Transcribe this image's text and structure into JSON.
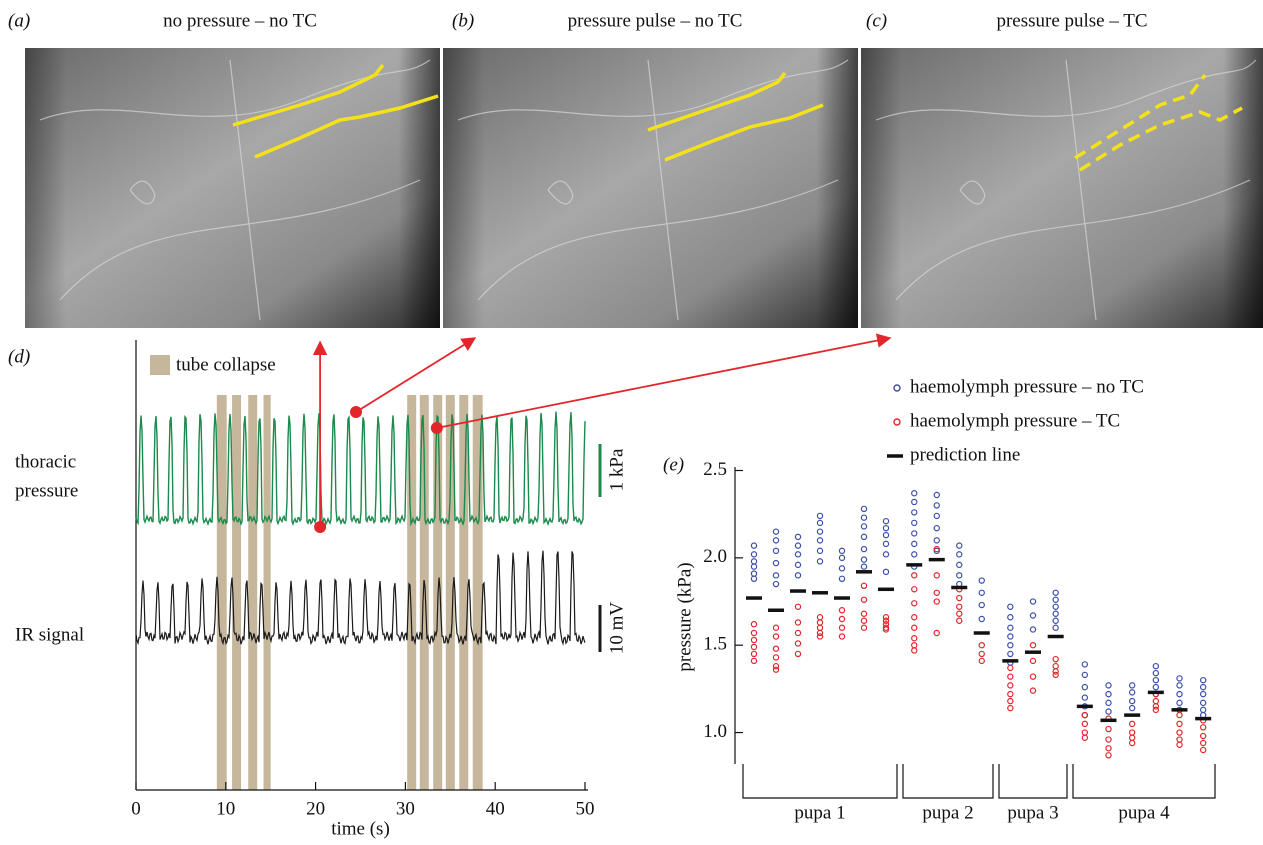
{
  "panels": [
    {
      "label": "(a)",
      "title": "no pressure – no TC"
    },
    {
      "label": "(b)",
      "title": "pressure pulse – no TC"
    },
    {
      "label": "(c)",
      "title": "pressure pulse – TC"
    }
  ],
  "chart_data": [
    {
      "type": "trace",
      "label": "(d)",
      "xlabel": "time (s)",
      "xlim": [
        0,
        50
      ],
      "xticks": [
        0,
        10,
        20,
        30,
        40,
        50
      ],
      "legend": "tube collapse",
      "interval_color": "#c5b69c",
      "intervals": [
        [
          9.0,
          10.1
        ],
        [
          10.7,
          11.7
        ],
        [
          12.5,
          13.5
        ],
        [
          14.2,
          15.0
        ],
        [
          30.2,
          31.2
        ],
        [
          31.6,
          32.6
        ],
        [
          33.1,
          34.1
        ],
        [
          34.5,
          35.5
        ],
        [
          36.0,
          37.0
        ],
        [
          37.5,
          38.6
        ]
      ],
      "traces": [
        {
          "name": [
            "thoracic",
            "pressure"
          ],
          "color": "#1b8a4c",
          "scale_label": "1 kPa"
        },
        {
          "name": "IR signal",
          "color": "#1a1a1a",
          "scale_label": "10 mV"
        }
      ],
      "markers": [
        20.5,
        24.5,
        33.5
      ],
      "marker_color": "#e3262b"
    },
    {
      "type": "strip",
      "label": "(e)",
      "ylabel": "pressure (kPa)",
      "ylim": [
        0.82,
        2.52
      ],
      "yticks": [
        {
          "value": 1.0,
          "label": "1.0"
        },
        1.5,
        {
          "value": 2.0,
          "label": "2.0"
        },
        2.5
      ],
      "legend": {
        "no_tc": {
          "name": "haemolymph pressure – no TC",
          "color": "#3b4fa8"
        },
        "tc": {
          "name": "haemolymph pressure – TC",
          "color": "#e0262a"
        },
        "prediction": {
          "name": "prediction line",
          "color": "#111111"
        }
      },
      "groups": [
        {
          "label": "pupa 1",
          "columns": [
            {
              "no_tc": [
                2.07,
                2.02,
                1.98,
                1.95,
                1.91,
                1.88
              ],
              "tc": [
                1.62,
                1.57,
                1.53,
                1.49,
                1.45,
                1.41
              ],
              "prediction": 1.77
            },
            {
              "no_tc": [
                2.15,
                2.1,
                2.04,
                1.97,
                1.9,
                1.85
              ],
              "tc": [
                1.6,
                1.55,
                1.48,
                1.43,
                1.38,
                1.36
              ],
              "prediction": 1.7
            },
            {
              "no_tc": [
                2.12,
                2.07,
                2.02,
                1.96,
                1.9
              ],
              "tc": [
                1.72,
                1.63,
                1.57,
                1.51,
                1.45
              ],
              "prediction": 1.81
            },
            {
              "no_tc": [
                2.24,
                2.2,
                2.15,
                2.1,
                2.04,
                1.98
              ],
              "tc": [
                1.66,
                1.63,
                1.6,
                1.57,
                1.55
              ],
              "prediction": 1.8
            },
            {
              "no_tc": [
                2.04,
                2.0,
                1.94,
                1.88
              ],
              "tc": [
                1.7,
                1.65,
                1.6,
                1.55
              ],
              "prediction": 1.77
            },
            {
              "no_tc": [
                2.28,
                2.23,
                2.18,
                2.12,
                2.05,
                1.99,
                1.95
              ],
              "tc": [
                1.84,
                1.76,
                1.68,
                1.64,
                1.6
              ],
              "prediction": 1.92
            },
            {
              "no_tc": [
                2.21,
                2.17,
                2.13,
                2.08,
                2.02,
                1.92
              ],
              "tc": [
                1.66,
                1.64,
                1.62,
                1.6,
                1.59
              ],
              "prediction": 1.82
            }
          ]
        },
        {
          "label": "pupa 2",
          "columns": [
            {
              "no_tc": [
                2.37,
                2.32,
                2.26,
                2.2,
                2.14,
                2.08,
                2.02,
                1.95
              ],
              "tc": [
                1.9,
                1.82,
                1.74,
                1.66,
                1.6,
                1.54,
                1.5,
                1.47
              ],
              "prediction": 1.96
            },
            {
              "no_tc": [
                2.36,
                2.3,
                2.24,
                2.17,
                2.1,
                2.04
              ],
              "tc": [
                2.05,
                1.9,
                1.8,
                1.75,
                1.57
              ],
              "prediction": 1.99
            },
            {
              "no_tc": [
                2.07,
                2.02,
                1.96,
                1.9,
                1.85
              ],
              "tc": [
                1.82,
                1.77,
                1.72,
                1.68,
                1.64
              ],
              "prediction": 1.83
            },
            {
              "no_tc": [
                1.87,
                1.8,
                1.73,
                1.65
              ],
              "tc": [
                1.5,
                1.45,
                1.41
              ],
              "prediction": 1.57
            }
          ]
        },
        {
          "label": "pupa 3",
          "columns": [
            {
              "no_tc": [
                1.72,
                1.66,
                1.6,
                1.55,
                1.5,
                1.45,
                1.4
              ],
              "tc": [
                1.37,
                1.32,
                1.27,
                1.22,
                1.18,
                1.14
              ],
              "prediction": 1.41
            },
            {
              "no_tc": [
                1.75,
                1.67,
                1.59
              ],
              "tc": [
                1.5,
                1.41,
                1.32,
                1.24
              ],
              "prediction": 1.46
            },
            {
              "no_tc": [
                1.8,
                1.76,
                1.72,
                1.68,
                1.64,
                1.6
              ],
              "tc": [
                1.42,
                1.38,
                1.35,
                1.33
              ],
              "prediction": 1.55
            }
          ]
        },
        {
          "label": "pupa 4",
          "columns": [
            {
              "no_tc": [
                1.39,
                1.33,
                1.26,
                1.2,
                1.15,
                1.1
              ],
              "tc": [
                1.1,
                1.05,
                1.0,
                0.97
              ],
              "prediction": 1.15
            },
            {
              "no_tc": [
                1.27,
                1.22,
                1.17,
                1.12
              ],
              "tc": [
                1.08,
                1.02,
                0.96,
                0.91,
                0.87
              ],
              "prediction": 1.07
            },
            {
              "no_tc": [
                1.27,
                1.23,
                1.18,
                1.14
              ],
              "tc": [
                1.05,
                1.0,
                0.97,
                0.94
              ],
              "prediction": 1.1
            },
            {
              "no_tc": [
                1.38,
                1.34,
                1.3,
                1.26,
                1.22
              ],
              "tc": [
                1.22,
                1.18,
                1.15,
                1.13
              ],
              "prediction": 1.23
            },
            {
              "no_tc": [
                1.31,
                1.27,
                1.22,
                1.17,
                1.13
              ],
              "tc": [
                1.1,
                1.05,
                1.0,
                0.96,
                0.93
              ],
              "prediction": 1.13
            },
            {
              "no_tc": [
                1.3,
                1.26,
                1.22,
                1.17,
                1.13,
                1.1
              ],
              "tc": [
                1.07,
                1.03,
                0.98,
                0.94,
                0.9
              ],
              "prediction": 1.08
            }
          ]
        }
      ]
    }
  ]
}
